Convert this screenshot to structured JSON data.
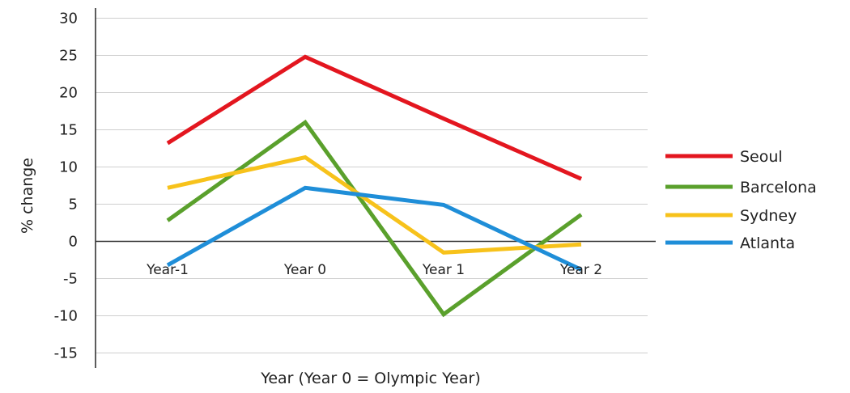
{
  "chart_data": {
    "type": "line",
    "title": "",
    "xlabel": "Year (Year 0 = Olympic Year)",
    "ylabel": "% change",
    "categories": [
      "Year-1",
      "Year 0",
      "Year 1",
      "Year 2"
    ],
    "y_ticks": [
      "30",
      "25",
      "20",
      "15",
      "10",
      "5",
      "0",
      "-5",
      "-10",
      "-15"
    ],
    "ylim": [
      -17,
      30
    ],
    "grid": true,
    "legend_position": "right",
    "series": [
      {
        "name": "Seoul",
        "color": "#e3161f",
        "values": [
          13.2,
          24.8,
          16.5,
          8.4
        ]
      },
      {
        "name": "Barcelona",
        "color": "#5aa02c",
        "values": [
          2.8,
          16.0,
          -9.8,
          3.6
        ]
      },
      {
        "name": "Sydney",
        "color": "#f7c21b",
        "values": [
          7.2,
          11.3,
          -1.5,
          -0.4
        ]
      },
      {
        "name": "Atlanta",
        "color": "#1f8ed8",
        "values": [
          -3.2,
          7.2,
          4.9,
          -3.8
        ]
      }
    ]
  }
}
